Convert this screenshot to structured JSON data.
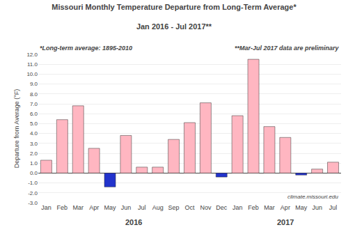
{
  "chart_data": {
    "type": "bar",
    "title": "Missouri Monthly Temperature Departure from Long-Term Average*",
    "subtitle": "Jan 2016 - Jul 2017**",
    "ylabel": "Departure from Average (°F)",
    "annotations": [
      "*Long-term average: 1895-2010",
      "**Mar-Jul 2017 data are preliminary",
      "climate.missouri.edu",
      "2016",
      "2017"
    ],
    "categories": [
      "Jan",
      "Feb",
      "Mar",
      "Apr",
      "May",
      "Jun",
      "Jul",
      "Aug",
      "Sep",
      "Oct",
      "Nov",
      "Dec",
      "Jan",
      "Feb",
      "Mar",
      "Apr",
      "May",
      "Jun",
      "Jul"
    ],
    "values": [
      1.3,
      5.4,
      6.8,
      2.5,
      -1.4,
      3.8,
      0.6,
      0.6,
      3.4,
      5.1,
      7.1,
      -0.4,
      5.8,
      11.5,
      4.7,
      3.6,
      -0.2,
      0.4,
      1.1
    ],
    "colors": [
      "#ffb6c1",
      "#ffb6c1",
      "#ffb6c1",
      "#ffb6c1",
      "#2233cc",
      "#ffb6c1",
      "#ffb6c1",
      "#ffb6c1",
      "#ffb6c1",
      "#ffb6c1",
      "#ffb6c1",
      "#2233cc",
      "#ffb6c1",
      "#ffb6c1",
      "#ffb6c1",
      "#ffb6c1",
      "#2233cc",
      "#ffb6c1",
      "#ffb6c1"
    ],
    "ylim": [
      -3.0,
      12.0
    ],
    "yticks": [
      {
        "value": -3,
        "label": "-3.0"
      },
      {
        "value": -2,
        "label": "-2.0"
      },
      {
        "value": -1,
        "label": "-1.0"
      },
      {
        "value": 0,
        "label": "0.0"
      },
      {
        "value": 1,
        "label": "1.0"
      },
      {
        "value": 2,
        "label": "2.0"
      },
      {
        "value": 3,
        "label": "3.0"
      },
      {
        "value": 4,
        "label": "4.0"
      },
      {
        "value": 5,
        "label": "5.0"
      },
      {
        "value": 6,
        "label": "6.0"
      },
      {
        "value": 7,
        "label": "7.0"
      },
      {
        "value": 8,
        "label": "8.0"
      },
      {
        "value": 9,
        "label": "9.0"
      },
      {
        "value": 10,
        "label": "10.0"
      },
      {
        "value": 11,
        "label": "11.0"
      },
      {
        "value": 12,
        "label": "12.0"
      }
    ],
    "grid": true
  }
}
